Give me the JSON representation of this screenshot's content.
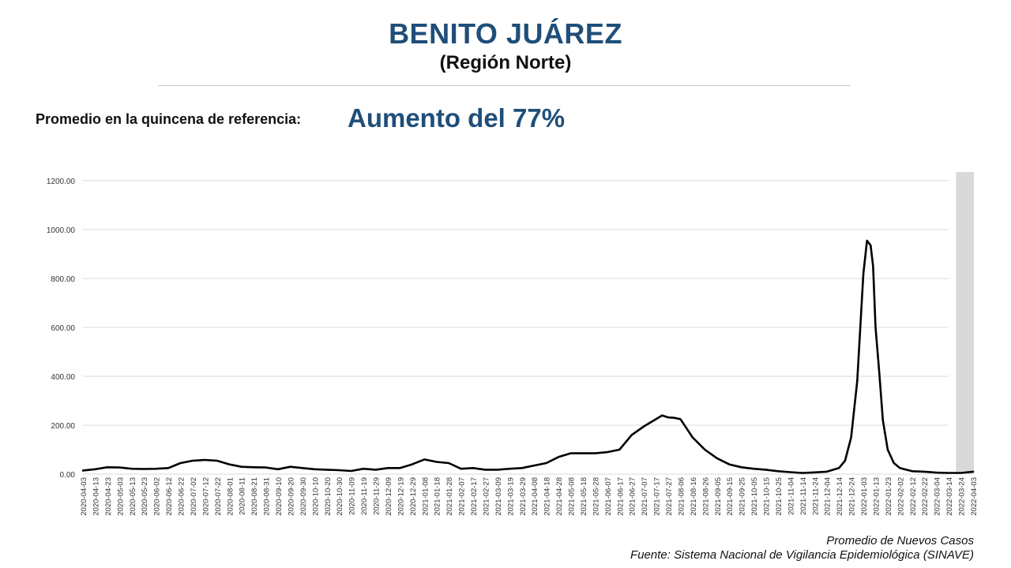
{
  "header": {
    "title": "BENITO JUÁREZ",
    "subtitle": "(Región Norte)"
  },
  "reference": {
    "label": "Promedio en la quincena de referencia:",
    "value": "Aumento del 77%"
  },
  "footer": {
    "line1": "Promedio de Nuevos Casos",
    "line2": "Fuente: Sistema Nacional de Vigilancia Epidemiológica (SINAVE)"
  },
  "colors": {
    "title": "#1f4e79",
    "line": "#000000",
    "grid": "#d9d9d9",
    "shade": "#d9d9d9"
  },
  "chart_data": {
    "type": "line",
    "title": "",
    "xlabel": "",
    "ylabel": "",
    "ylim": [
      0,
      1200
    ],
    "yticks": [
      "1200.00",
      "1000.00",
      "800.00",
      "600.00",
      "400.00",
      "200.00",
      "0.00"
    ],
    "grid": true,
    "highlight_band": {
      "from": "2022-03-20",
      "to": "2022-04-03"
    },
    "x_start": "2020-04-03",
    "x_end": "2022-04-03",
    "xtick_step_days": 10,
    "xtick_labels": [
      "2020-04-03",
      "2020-04-13",
      "2020-04-23",
      "2020-05-03",
      "2020-05-13",
      "2020-05-23",
      "2020-06-02",
      "2020-06-12",
      "2020-06-22",
      "2020-07-02",
      "2020-07-12",
      "2020-07-22",
      "2020-08-01",
      "2020-08-11",
      "2020-08-21",
      "2020-08-31",
      "2020-09-10",
      "2020-09-20",
      "2020-09-30",
      "2020-10-10",
      "2020-10-20",
      "2020-10-30",
      "2020-11-09",
      "2020-11-19",
      "2020-11-29",
      "2020-12-09",
      "2020-12-19",
      "2020-12-29",
      "2021-01-08",
      "2021-01-18",
      "2021-01-28",
      "2021-02-07",
      "2021-02-17",
      "2021-02-27",
      "2021-03-09",
      "2021-03-19",
      "2021-03-29",
      "2021-04-08",
      "2021-04-18",
      "2021-04-28",
      "2021-05-08",
      "2021-05-18",
      "2021-05-28",
      "2021-06-07",
      "2021-06-17",
      "2021-06-27",
      "2021-07-07",
      "2021-07-17",
      "2021-07-27",
      "2021-08-06",
      "2021-08-16",
      "2021-08-26",
      "2021-09-05",
      "2021-09-15",
      "2021-09-25",
      "2021-10-05",
      "2021-10-15",
      "2021-10-25",
      "2021-11-04",
      "2021-11-14",
      "2021-11-24",
      "2021-12-04",
      "2021-12-14",
      "2021-12-24",
      "2022-01-03",
      "2022-01-13",
      "2022-01-23",
      "2022-02-02",
      "2022-02-12",
      "2022-02-22",
      "2022-03-04",
      "2022-03-14",
      "2022-03-24",
      "2022-04-03"
    ],
    "series": [
      {
        "x": [
          "2020-04-03",
          "2020-04-13",
          "2020-04-23",
          "2020-05-03",
          "2020-05-13",
          "2020-05-23",
          "2020-06-02",
          "2020-06-12",
          "2020-06-22",
          "2020-07-02",
          "2020-07-12",
          "2020-07-22",
          "2020-08-01",
          "2020-08-11",
          "2020-08-21",
          "2020-08-31",
          "2020-09-10",
          "2020-09-20",
          "2020-09-30",
          "2020-10-10",
          "2020-10-20",
          "2020-10-30",
          "2020-11-09",
          "2020-11-19",
          "2020-11-29",
          "2020-12-09",
          "2020-12-19",
          "2020-12-29",
          "2021-01-08",
          "2021-01-18",
          "2021-01-28",
          "2021-02-07",
          "2021-02-17",
          "2021-02-27",
          "2021-03-09",
          "2021-03-19",
          "2021-03-29",
          "2021-04-08",
          "2021-04-18",
          "2021-04-28",
          "2021-05-08",
          "2021-05-18",
          "2021-05-28",
          "2021-06-07",
          "2021-06-17",
          "2021-06-27",
          "2021-07-07",
          "2021-07-17",
          "2021-07-22",
          "2021-07-27",
          "2021-08-01",
          "2021-08-06",
          "2021-08-16",
          "2021-08-26",
          "2021-09-05",
          "2021-09-15",
          "2021-09-25",
          "2021-10-05",
          "2021-10-15",
          "2021-10-25",
          "2021-11-04",
          "2021-11-14",
          "2021-11-24",
          "2021-12-04",
          "2021-12-14",
          "2021-12-19",
          "2021-12-24",
          "2021-12-29",
          "2022-01-03",
          "2022-01-06",
          "2022-01-09",
          "2022-01-11",
          "2022-01-13",
          "2022-01-16",
          "2022-01-19",
          "2022-01-23",
          "2022-01-28",
          "2022-02-02",
          "2022-02-12",
          "2022-02-22",
          "2022-03-04",
          "2022-03-14",
          "2022-03-24",
          "2022-04-03"
        ],
        "y": [
          15,
          20,
          28,
          27,
          22,
          21,
          22,
          25,
          45,
          55,
          58,
          55,
          40,
          30,
          28,
          27,
          20,
          30,
          25,
          20,
          18,
          16,
          13,
          22,
          18,
          25,
          25,
          40,
          60,
          50,
          45,
          22,
          25,
          18,
          18,
          22,
          25,
          35,
          45,
          70,
          85,
          85,
          85,
          90,
          100,
          160,
          195,
          225,
          240,
          232,
          230,
          225,
          150,
          100,
          65,
          40,
          28,
          22,
          18,
          12,
          8,
          5,
          7,
          10,
          25,
          55,
          150,
          380,
          820,
          955,
          935,
          850,
          600,
          420,
          220,
          100,
          45,
          25,
          12,
          10,
          6,
          5,
          5,
          10
        ]
      }
    ]
  }
}
